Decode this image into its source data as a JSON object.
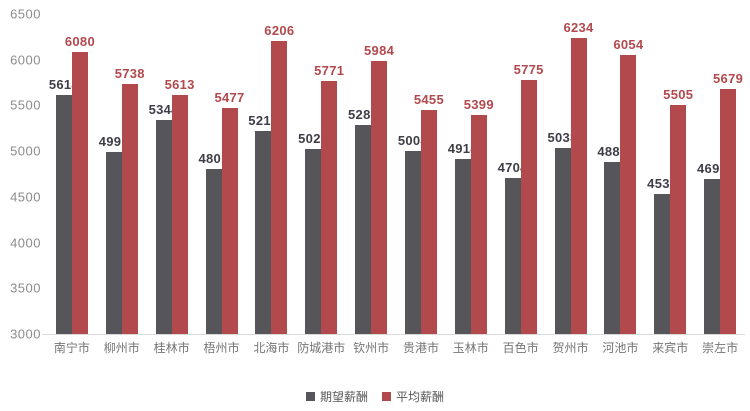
{
  "chart_data": {
    "type": "bar",
    "title": "",
    "xlabel": "",
    "ylabel": "",
    "categories": [
      "南宁市",
      "柳州市",
      "桂林市",
      "梧州市",
      "北海市",
      "防城港市",
      "钦州市",
      "贵港市",
      "玉林市",
      "百色市",
      "贺州市",
      "河池市",
      "来宾市",
      "崇左市"
    ],
    "series": [
      {
        "name": "期望薪酬",
        "color": "#56555A",
        "label_color": "#3F3E48",
        "values": [
          5614,
          4991,
          5344,
          4801,
          5216,
          5023,
          5288,
          5004,
          4914,
          4704,
          5033,
          4883,
          4532,
          4697
        ]
      },
      {
        "name": "平均薪酬",
        "color": "#B2494D",
        "label_color": "#B2494D",
        "values": [
          6080,
          5738,
          5613,
          5477,
          6206,
          5771,
          5984,
          5455,
          5399,
          5775,
          6234,
          6054,
          5505,
          5679
        ]
      }
    ],
    "ylim": [
      3000,
      6500
    ],
    "y_ticks": [
      3000,
      3500,
      4000,
      4500,
      5000,
      5500,
      6000,
      6500
    ],
    "grid": false,
    "data_labels": true,
    "legend_position": "bottom"
  },
  "axes_style": {
    "tick_color": "#8C8C8C",
    "category_color": "#757575",
    "baseline_color": "#D9D9D9",
    "legend_text_color": "#595959"
  }
}
